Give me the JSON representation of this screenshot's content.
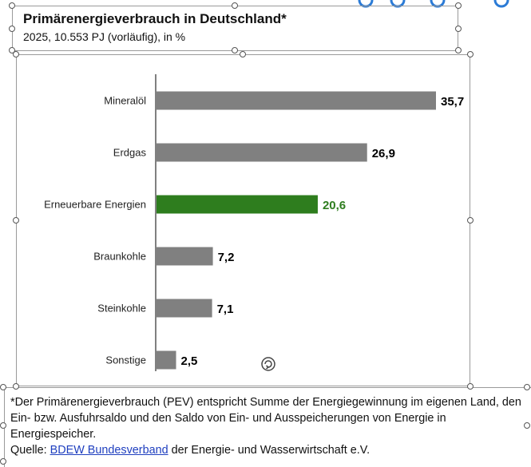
{
  "title": "Primärenergieverbrauch in Deutschland*",
  "subtitle": "2025, 10.553 PJ (vorläufig), in %",
  "chart_data": {
    "type": "bar",
    "orientation": "horizontal",
    "categories": [
      "Mineralöl",
      "Erdgas",
      "Erneuerbare Energien",
      "Braunkohle",
      "Steinkohle",
      "Sonstige"
    ],
    "values": [
      35.7,
      26.9,
      20.6,
      7.2,
      7.1,
      2.5
    ],
    "value_labels": [
      "35,7",
      "26,9",
      "20,6",
      "7,2",
      "7,1",
      "2,5"
    ],
    "highlight_category": "Erneuerbare Energien",
    "colors": {
      "default": "#808080",
      "highlight": "#2e7d1e",
      "label_default": "#000000",
      "label_highlight": "#2e7d1e"
    },
    "grid": false,
    "legend": "none"
  },
  "footnote": {
    "text": "*Der Primärenergieverbrauch (PEV) entspricht Summe der Energiegewinnung im eigenen Land, den Ein- bzw. Ausfuhrsaldo und den Saldo von Ein- und Ausspeicherungen von Energie in Energiespeicher.",
    "source_prefix": "Quelle: ",
    "source_link": "BDEW Bundesverband",
    "source_suffix": " der Energie- und Wasserwirtschaft e.V."
  },
  "icons": {
    "rotate": "rotate-handle-icon"
  }
}
